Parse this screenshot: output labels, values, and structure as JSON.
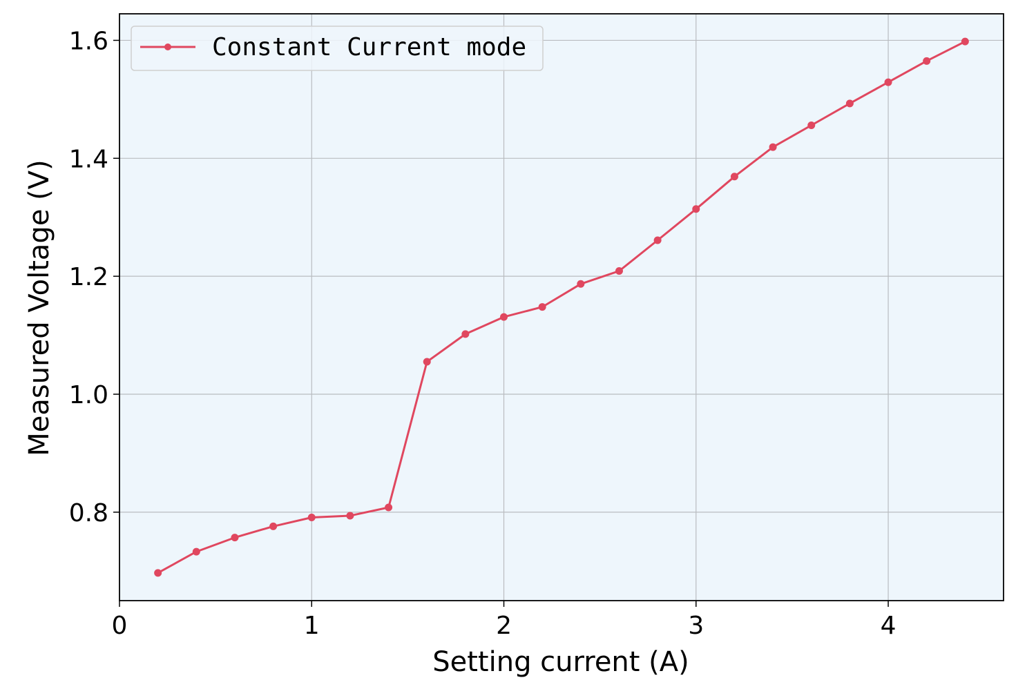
{
  "chart_data": {
    "type": "line",
    "title": "",
    "xlabel": "Setting current (A)",
    "ylabel": "Measured Voltage (V)",
    "xlim": [
      0,
      4.6
    ],
    "ylim": [
      0.65,
      1.645
    ],
    "xticks": [
      0,
      1,
      2,
      3,
      4
    ],
    "xtick_labels": [
      "0",
      "1",
      "2",
      "3",
      "4"
    ],
    "yticks": [
      0.8,
      1.0,
      1.2,
      1.4,
      1.6
    ],
    "ytick_labels": [
      "0.8",
      "1.0",
      "1.2",
      "1.4",
      "1.6"
    ],
    "grid": true,
    "legend_position": "top-left",
    "background_color": "#eef6fc",
    "line_color": "#e0475f",
    "series": [
      {
        "name": "Constant Current mode",
        "x": [
          0.2,
          0.4,
          0.6,
          0.8,
          1.0,
          1.2,
          1.4,
          1.6,
          1.8,
          2.0,
          2.2,
          2.4,
          2.6,
          2.8,
          3.0,
          3.2,
          3.4,
          3.6,
          3.8,
          4.0,
          4.2,
          4.4
        ],
        "y": [
          0.697,
          0.733,
          0.757,
          0.776,
          0.791,
          0.794,
          0.808,
          1.055,
          1.102,
          1.131,
          1.148,
          1.187,
          1.209,
          1.261,
          1.314,
          1.369,
          1.419,
          1.456,
          1.493,
          1.529,
          1.565,
          1.598
        ]
      }
    ]
  }
}
